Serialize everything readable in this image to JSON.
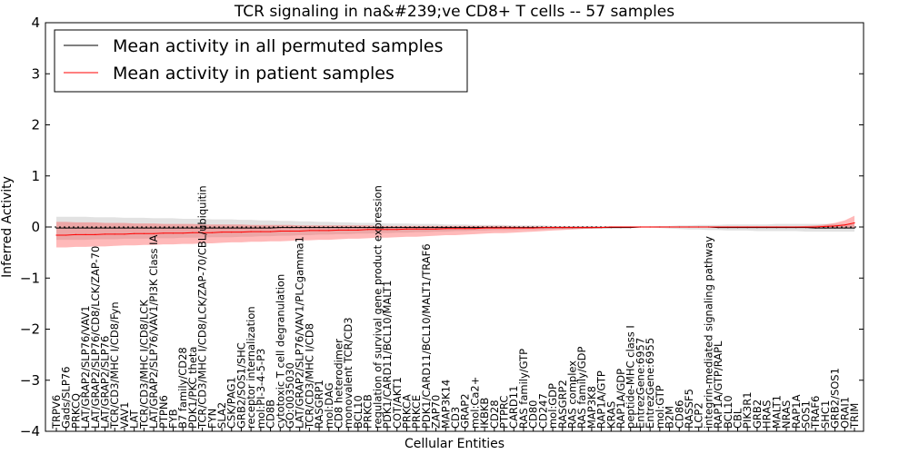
{
  "chart_data": {
    "type": "line",
    "title": "TCR signaling in na&#239;ve CD8+ T cells -- 57 samples",
    "xlabel": "Cellular Entities",
    "ylabel": "Inferred Activity",
    "ylim": [
      -4,
      4
    ],
    "yticks": [
      -4,
      -3,
      -2,
      -1,
      0,
      1,
      2,
      3,
      4
    ],
    "ytick_labels": [
      "−4",
      "−3",
      "−2",
      "−1",
      "0",
      "1",
      "2",
      "3",
      "4"
    ],
    "legend_position": "top-left",
    "reference_line": 0,
    "categories": [
      "TRPV6",
      "Gads/SLP76",
      "PRKCQ",
      "LAT/GRAP2/SLP76/VAV1",
      "LAT/GRAP2/SLP76/CD8/LCK/ZAP-70",
      "LAT/GRAP2/SLP76",
      "TCR/CD3/MHC I/CD8/Fyn",
      "VAV1",
      "LAT",
      "TCR/CD3/MHC I/CD8/LCK",
      "LAT/GRAP2/SLP76/VAV1/PI3K Class IA",
      "PTPN6",
      "FYB",
      "B7 family/CD28",
      "PDK1/PKC theta",
      "TCR/CD3/MHC I/CD8/LCK/ZAP-70/CBL/ubiquitin",
      "FYN",
      "SLA2",
      "CSK/PAG1",
      "GRB2/SOS1/SHC",
      "receptor internalization",
      "mol:PI-3-4-5-P3",
      "CD8B",
      "cytotoxic T cell degranulation",
      "GO:0035030",
      "LAT/GRAP2/SLP76/VAV1/PLCgamma1",
      "TCR/CD3/MHC I/CD8",
      "RASGRP1",
      "mol:DAG",
      "CD8 heterodimer",
      "monovalent TCR/CD3",
      "BCL10",
      "PRKCB",
      "regulation of survival gene product expression",
      "PDK1/CARD11/BCL10/MALT1",
      "COT/AKT1",
      "PRKCA",
      "PRKCE",
      "PDK1/CARD11/BCL10/MALT1/TRAF6",
      "ZAP70",
      "MAP3K14",
      "CD3",
      "GRAP2",
      "mol:Ca2+",
      "IKBKB",
      "CD28",
      "PTPRC",
      "CARD11",
      "RAS family/GTP",
      "CD80",
      "CD247",
      "mol:GDP",
      "RASGRP2",
      "RAS complex",
      "RAS family/GDP",
      "MAP3K8",
      "RAP1A/GTP",
      "KRAS",
      "RAP1A/GDP",
      "peptide-MHC class I",
      "EntrezGene:6957",
      "EntrezGene:6955",
      "mol:GTP",
      "B2M",
      "CD86",
      "RASSF5",
      "LCP2",
      "integrin-mediated signaling pathway",
      "RAP1A/GTP/RAPL",
      "BCL10",
      "CBL",
      "PIK3R1",
      "GRB2",
      "HRAS",
      "MALT1",
      "NRAS",
      "RAP1A",
      "SOS1",
      "TRAF6",
      "SHC1",
      "GRB2/SOS1",
      "ORAI1",
      "TRIM"
    ],
    "series": [
      {
        "name": "Mean activity in all permuted samples",
        "color": "#000000",
        "values": [
          -0.02,
          -0.02,
          -0.02,
          -0.02,
          -0.02,
          -0.02,
          -0.02,
          -0.02,
          -0.02,
          -0.02,
          -0.02,
          -0.02,
          -0.02,
          -0.02,
          -0.02,
          -0.02,
          -0.02,
          -0.02,
          -0.02,
          -0.02,
          -0.02,
          -0.02,
          -0.02,
          -0.01,
          -0.01,
          -0.01,
          -0.01,
          -0.01,
          -0.01,
          -0.01,
          -0.01,
          -0.01,
          -0.01,
          -0.01,
          -0.01,
          -0.01,
          -0.01,
          -0.01,
          -0.01,
          -0.01,
          -0.01,
          -0.01,
          -0.01,
          -0.01,
          -0.01,
          -0.01,
          -0.01,
          -0.01,
          -0.01,
          -0.01,
          -0.01,
          -0.01,
          -0.01,
          -0.01,
          -0.01,
          -0.01,
          -0.01,
          -0.01,
          -0.01,
          -0.01,
          0.0,
          0.0,
          0.0,
          0.0,
          0.0,
          0.0,
          0.0,
          0.0,
          -0.01,
          -0.01,
          -0.01,
          -0.01,
          -0.01,
          -0.01,
          -0.01,
          -0.01,
          -0.01,
          -0.01,
          -0.02,
          -0.02,
          -0.02,
          -0.02,
          -0.02
        ],
        "band_lower": [
          -0.25,
          -0.25,
          -0.25,
          -0.25,
          -0.24,
          -0.24,
          -0.24,
          -0.23,
          -0.23,
          -0.23,
          -0.22,
          -0.22,
          -0.22,
          -0.21,
          -0.21,
          -0.21,
          -0.2,
          -0.2,
          -0.2,
          -0.19,
          -0.19,
          -0.18,
          -0.18,
          -0.17,
          -0.17,
          -0.16,
          -0.16,
          -0.15,
          -0.15,
          -0.14,
          -0.14,
          -0.13,
          -0.13,
          -0.12,
          -0.12,
          -0.11,
          -0.11,
          -0.1,
          -0.1,
          -0.09,
          -0.09,
          -0.08,
          -0.08,
          -0.07,
          -0.07,
          -0.06,
          -0.06,
          -0.06,
          -0.05,
          -0.05,
          -0.05,
          -0.04,
          -0.04,
          -0.04,
          -0.03,
          -0.03,
          -0.03,
          -0.02,
          -0.02,
          -0.01,
          -0.01,
          -0.01,
          -0.02,
          -0.03,
          -0.04,
          -0.05,
          -0.05,
          -0.06,
          -0.06,
          -0.07,
          -0.07,
          -0.07,
          -0.08,
          -0.08,
          -0.08,
          -0.08,
          -0.08,
          -0.09,
          -0.09,
          -0.09,
          -0.09,
          -0.09,
          -0.09
        ],
        "band_upper": [
          0.2,
          0.2,
          0.2,
          0.2,
          0.19,
          0.19,
          0.19,
          0.18,
          0.18,
          0.18,
          0.17,
          0.17,
          0.17,
          0.16,
          0.16,
          0.16,
          0.15,
          0.15,
          0.15,
          0.14,
          0.14,
          0.13,
          0.13,
          0.12,
          0.12,
          0.11,
          0.11,
          0.1,
          0.1,
          0.09,
          0.09,
          0.08,
          0.08,
          0.08,
          0.07,
          0.07,
          0.07,
          0.06,
          0.06,
          0.06,
          0.05,
          0.05,
          0.05,
          0.04,
          0.04,
          0.04,
          0.04,
          0.03,
          0.03,
          0.03,
          0.03,
          0.02,
          0.02,
          0.02,
          0.02,
          0.02,
          0.01,
          0.01,
          0.01,
          0.01,
          0.01,
          0.01,
          0.02,
          0.02,
          0.03,
          0.03,
          0.04,
          0.04,
          0.04,
          0.05,
          0.05,
          0.05,
          0.05,
          0.05,
          0.06,
          0.06,
          0.06,
          0.06,
          0.06,
          0.06,
          0.06,
          0.06,
          0.06
        ]
      },
      {
        "name": "Mean activity in patient samples",
        "color": "#ff0000",
        "values": [
          -0.16,
          -0.16,
          -0.15,
          -0.15,
          -0.15,
          -0.14,
          -0.14,
          -0.14,
          -0.13,
          -0.13,
          -0.13,
          -0.12,
          -0.12,
          -0.12,
          -0.11,
          -0.11,
          -0.11,
          -0.1,
          -0.1,
          -0.1,
          -0.09,
          -0.09,
          -0.09,
          -0.08,
          -0.08,
          -0.08,
          -0.07,
          -0.07,
          -0.07,
          -0.06,
          -0.06,
          -0.06,
          -0.05,
          -0.05,
          -0.05,
          -0.05,
          -0.04,
          -0.04,
          -0.04,
          -0.04,
          -0.03,
          -0.03,
          -0.03,
          -0.03,
          -0.02,
          -0.02,
          -0.02,
          -0.02,
          -0.02,
          -0.02,
          -0.01,
          -0.01,
          -0.01,
          -0.01,
          -0.01,
          -0.01,
          -0.01,
          0.0,
          0.0,
          0.0,
          0.0,
          0.0,
          0.0,
          0.0,
          0.0,
          0.0,
          0.0,
          0.0,
          0.0,
          0.0,
          0.0,
          0.0,
          0.0,
          0.0,
          0.0,
          0.0,
          0.0,
          0.0,
          0.0,
          0.01,
          0.02,
          0.04,
          0.08
        ],
        "band_lower": [
          -0.4,
          -0.4,
          -0.39,
          -0.39,
          -0.38,
          -0.38,
          -0.37,
          -0.36,
          -0.36,
          -0.35,
          -0.35,
          -0.34,
          -0.34,
          -0.33,
          -0.33,
          -0.32,
          -0.32,
          -0.31,
          -0.3,
          -0.3,
          -0.29,
          -0.29,
          -0.28,
          -0.28,
          -0.27,
          -0.26,
          -0.26,
          -0.25,
          -0.25,
          -0.24,
          -0.23,
          -0.23,
          -0.22,
          -0.21,
          -0.21,
          -0.2,
          -0.19,
          -0.19,
          -0.18,
          -0.17,
          -0.16,
          -0.16,
          -0.15,
          -0.14,
          -0.13,
          -0.12,
          -0.12,
          -0.11,
          -0.1,
          -0.09,
          -0.08,
          -0.07,
          -0.06,
          -0.05,
          -0.04,
          -0.03,
          -0.02,
          -0.02,
          -0.01,
          -0.01,
          -0.01,
          -0.01,
          -0.01,
          -0.01,
          -0.01,
          -0.01,
          -0.01,
          -0.01,
          -0.01,
          -0.01,
          -0.01,
          -0.01,
          -0.01,
          -0.01,
          -0.01,
          -0.01,
          -0.01,
          -0.01,
          -0.01,
          -0.01,
          -0.01,
          -0.01,
          -0.01
        ],
        "band_upper": [
          0.1,
          0.1,
          0.09,
          0.09,
          0.09,
          0.08,
          0.08,
          0.08,
          0.07,
          0.07,
          0.07,
          0.06,
          0.06,
          0.06,
          0.06,
          0.05,
          0.05,
          0.05,
          0.05,
          0.05,
          0.04,
          0.04,
          0.04,
          0.04,
          0.04,
          0.03,
          0.03,
          0.03,
          0.03,
          0.03,
          0.03,
          0.03,
          0.03,
          0.02,
          0.02,
          0.02,
          0.02,
          0.02,
          0.02,
          0.02,
          0.02,
          0.02,
          0.02,
          0.02,
          0.02,
          0.02,
          0.02,
          0.01,
          0.01,
          0.01,
          0.01,
          0.01,
          0.01,
          0.01,
          0.01,
          0.01,
          0.01,
          0.01,
          0.01,
          0.01,
          0.01,
          0.01,
          0.01,
          0.01,
          0.01,
          0.01,
          0.01,
          0.01,
          0.01,
          0.01,
          0.01,
          0.01,
          0.01,
          0.01,
          0.01,
          0.01,
          0.01,
          0.02,
          0.03,
          0.05,
          0.08,
          0.13,
          0.22
        ]
      }
    ]
  }
}
